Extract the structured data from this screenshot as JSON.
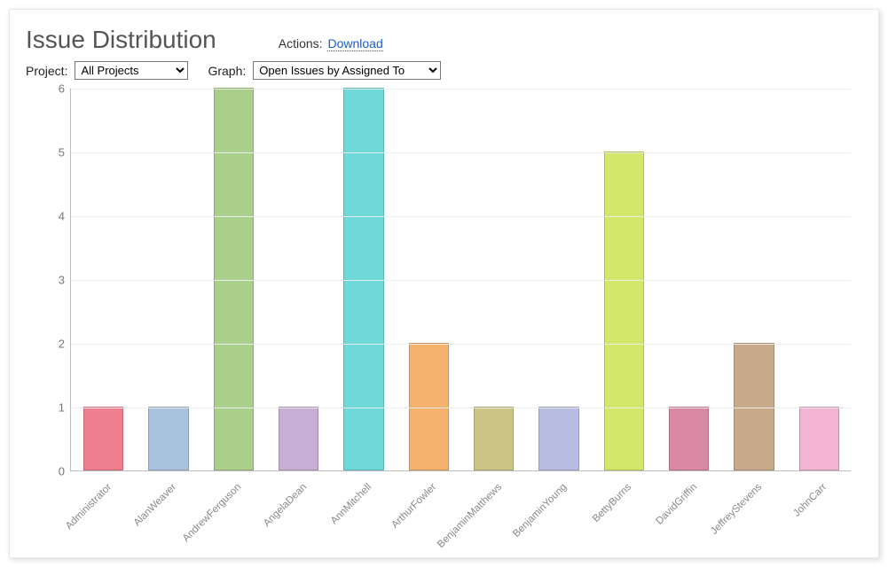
{
  "title": "Issue Distribution",
  "actions_label": "Actions:",
  "download_label": "Download",
  "project_label": "Project:",
  "project_selected": "All Projects",
  "graph_label": "Graph:",
  "graph_selected": "Open Issues by Assigned To",
  "chart": {
    "type": "bar",
    "background_color": "#ffffff",
    "grid_color": "#ececec",
    "axis_color": "#bdbdbd",
    "tick_fontcolor": "#777777",
    "tick_fontsize": 13,
    "xlabel_fontcolor": "#888888",
    "xlabel_fontsize": 11.5,
    "xlabel_rotation_deg": -45,
    "ylim": [
      0,
      6
    ],
    "ytick_step": 1,
    "bar_width_ratio": 0.62,
    "bar_border_color": "rgba(0,0,0,0.18)",
    "categories": [
      "Administrator",
      "AlanWeaver",
      "AndrewFerguson",
      "AngelaDean",
      "AnnMitchell",
      "ArthurFowler",
      "BenjaminMatthews",
      "BenjaminYoung",
      "BettyBurns",
      "DavidGriffin",
      "JeffreyStevens",
      "JohnCarr"
    ],
    "values": [
      1,
      1,
      6,
      1,
      6,
      2,
      1,
      1,
      5,
      1,
      2,
      1
    ],
    "bar_colors": [
      "#ef7e8e",
      "#a9c3de",
      "#aacf8a",
      "#c7aed4",
      "#6fd9d9",
      "#f5b26c",
      "#cbc686",
      "#b7bde2",
      "#d3e86b",
      "#da89a5",
      "#c8a98a",
      "#f3b3d3"
    ]
  }
}
